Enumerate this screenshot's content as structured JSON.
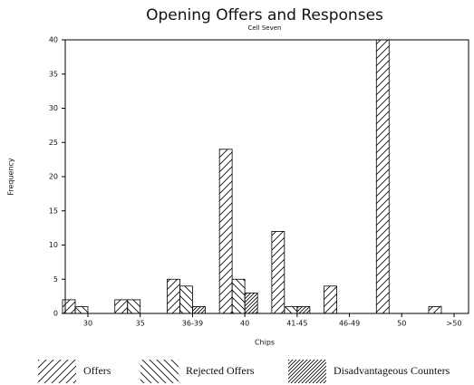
{
  "chart_data": {
    "type": "bar",
    "title": "Opening Offers and Responses",
    "subtitle": "Cell Seven",
    "x_label": "Chips",
    "y_label": "Frequency",
    "categories": [
      "30",
      "35",
      "36-39",
      "40",
      "41-45",
      "46-49",
      "50",
      ">50"
    ],
    "series": [
      {
        "name": "Offers",
        "color": "#000000",
        "hatch": "/",
        "values": [
          2,
          2,
          5,
          24,
          12,
          4,
          40,
          1
        ]
      },
      {
        "name": "Rejected Offers",
        "color": "#000000",
        "hatch": "\\",
        "values": [
          1,
          2,
          4,
          5,
          1,
          0,
          0,
          0
        ]
      },
      {
        "name": "Disadvantageous Counters",
        "color": "#000000",
        "hatch": "///",
        "values": [
          0,
          0,
          1,
          3,
          1,
          0,
          0,
          0
        ]
      }
    ],
    "ylim": [
      0,
      40
    ],
    "yticks": [
      0,
      5,
      10,
      15,
      20,
      25,
      30,
      35,
      40
    ],
    "legend": "bottom",
    "grid": false
  }
}
